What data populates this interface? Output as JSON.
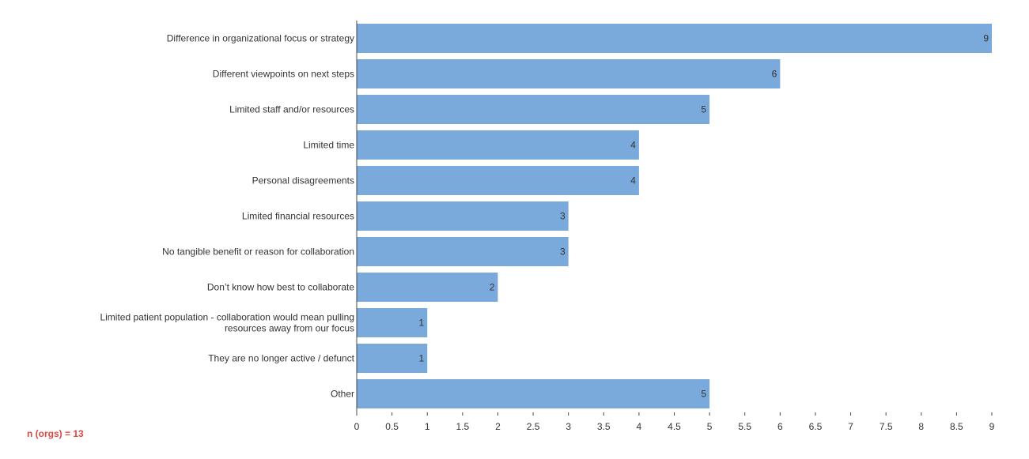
{
  "chart_data": {
    "type": "bar",
    "orientation": "horizontal",
    "title": "",
    "xlabel": "",
    "ylabel": "",
    "categories": [
      "Difference in organizational focus or strategy",
      "Different viewpoints on next steps",
      "Limited staff and/or resources",
      "Limited time",
      "Personal disagreements",
      "Limited financial resources",
      "No tangible benefit or reason for collaboration",
      "Don't know how best to collaborate",
      "Limited patient population - collaboration would mean pulling resources away from our focus",
      "They are no longer active / defunct",
      "Other"
    ],
    "category_lines": [
      [
        "Difference in organizational focus or strategy"
      ],
      [
        "Different viewpoints on next steps"
      ],
      [
        "Limited staff and/or resources"
      ],
      [
        "Limited time"
      ],
      [
        "Personal disagreements"
      ],
      [
        "Limited financial resources"
      ],
      [
        "No tangible benefit or reason for collaboration"
      ],
      [
        "Don’t know how best to collaborate"
      ],
      [
        "Limited patient population - collaboration would mean pulling",
        "resources away from our focus"
      ],
      [
        "They are no longer active / defunct"
      ],
      [
        "Other"
      ]
    ],
    "values": [
      9,
      6,
      5,
      4,
      4,
      3,
      3,
      2,
      1,
      1,
      5
    ],
    "xlim": [
      0,
      9
    ],
    "xticks": [
      "0",
      "0.5",
      "1",
      "1.5",
      "2",
      "2.5",
      "3",
      "3.5",
      "4",
      "4.5",
      "5",
      "5.5",
      "6",
      "6.5",
      "7",
      "7.5",
      "8",
      "8.5",
      "9"
    ],
    "grid": false,
    "legend": "none",
    "bar_color": "#7aaadb"
  },
  "note": "n (orgs) = 13"
}
